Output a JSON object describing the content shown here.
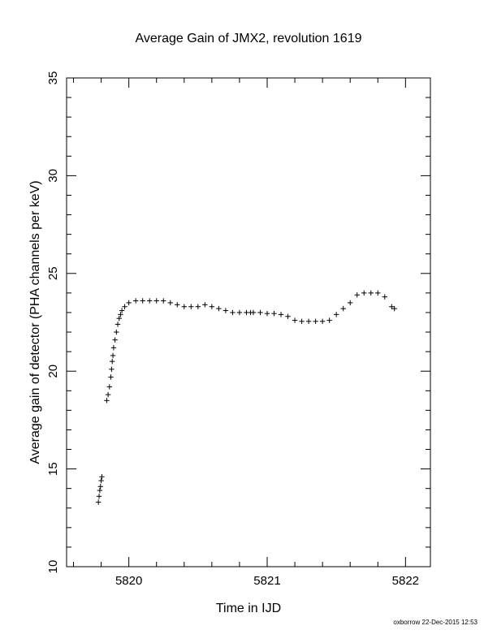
{
  "chart_data": {
    "type": "scatter",
    "title": "Average Gain of JMX2, revolution 1619",
    "xlabel": "Time in IJD",
    "ylabel": "Average gain of detector (PHA channels per keV)",
    "xlim": [
      5819.55,
      5822.18
    ],
    "ylim": [
      10,
      35
    ],
    "x_ticks": [
      5820,
      5821,
      5822
    ],
    "x_tick_labels": [
      "5820",
      "5821",
      "5822"
    ],
    "y_ticks": [
      10,
      15,
      20,
      25,
      30,
      35
    ],
    "y_tick_labels": [
      "10",
      "15",
      "20",
      "25",
      "30",
      "35"
    ],
    "marker": "+",
    "marker_color": "#000000",
    "grid": false,
    "series": [
      {
        "x": [
          5819.78,
          5819.785,
          5819.79,
          5819.795,
          5819.8,
          5819.805,
          5819.84,
          5819.85,
          5819.86,
          5819.87,
          5819.875,
          5819.88,
          5819.885,
          5819.89,
          5819.9,
          5819.91,
          5819.92,
          5819.93,
          5819.94,
          5819.95,
          5819.97,
          5820.0,
          5820.05,
          5820.1,
          5820.15,
          5820.2,
          5820.25,
          5820.3,
          5820.35,
          5820.4,
          5820.45,
          5820.5,
          5820.55,
          5820.6,
          5820.65,
          5820.7,
          5820.75,
          5820.8,
          5820.85,
          5820.88,
          5820.9,
          5820.95,
          5821.0,
          5821.05,
          5821.1,
          5821.15,
          5821.2,
          5821.25,
          5821.3,
          5821.35,
          5821.4,
          5821.45,
          5821.5,
          5821.55,
          5821.6,
          5821.65,
          5821.7,
          5821.75,
          5821.8,
          5821.85,
          5821.9,
          5821.92
        ],
        "y": [
          13.3,
          13.6,
          13.9,
          14.1,
          14.4,
          14.6,
          18.5,
          18.8,
          19.2,
          19.7,
          20.1,
          20.5,
          20.8,
          21.2,
          21.6,
          22.0,
          22.4,
          22.7,
          22.9,
          23.1,
          23.3,
          23.5,
          23.6,
          23.6,
          23.6,
          23.6,
          23.6,
          23.5,
          23.4,
          23.3,
          23.3,
          23.3,
          23.4,
          23.3,
          23.2,
          23.1,
          23.0,
          23.0,
          23.0,
          23.0,
          23.0,
          23.0,
          22.95,
          22.95,
          22.9,
          22.8,
          22.6,
          22.55,
          22.55,
          22.55,
          22.55,
          22.6,
          22.9,
          23.2,
          23.5,
          23.9,
          24.0,
          24.0,
          24.0,
          23.8,
          23.3,
          23.2
        ]
      }
    ]
  },
  "footer": {
    "credit": "oxborrow 22-Dec-2015 12:53"
  }
}
